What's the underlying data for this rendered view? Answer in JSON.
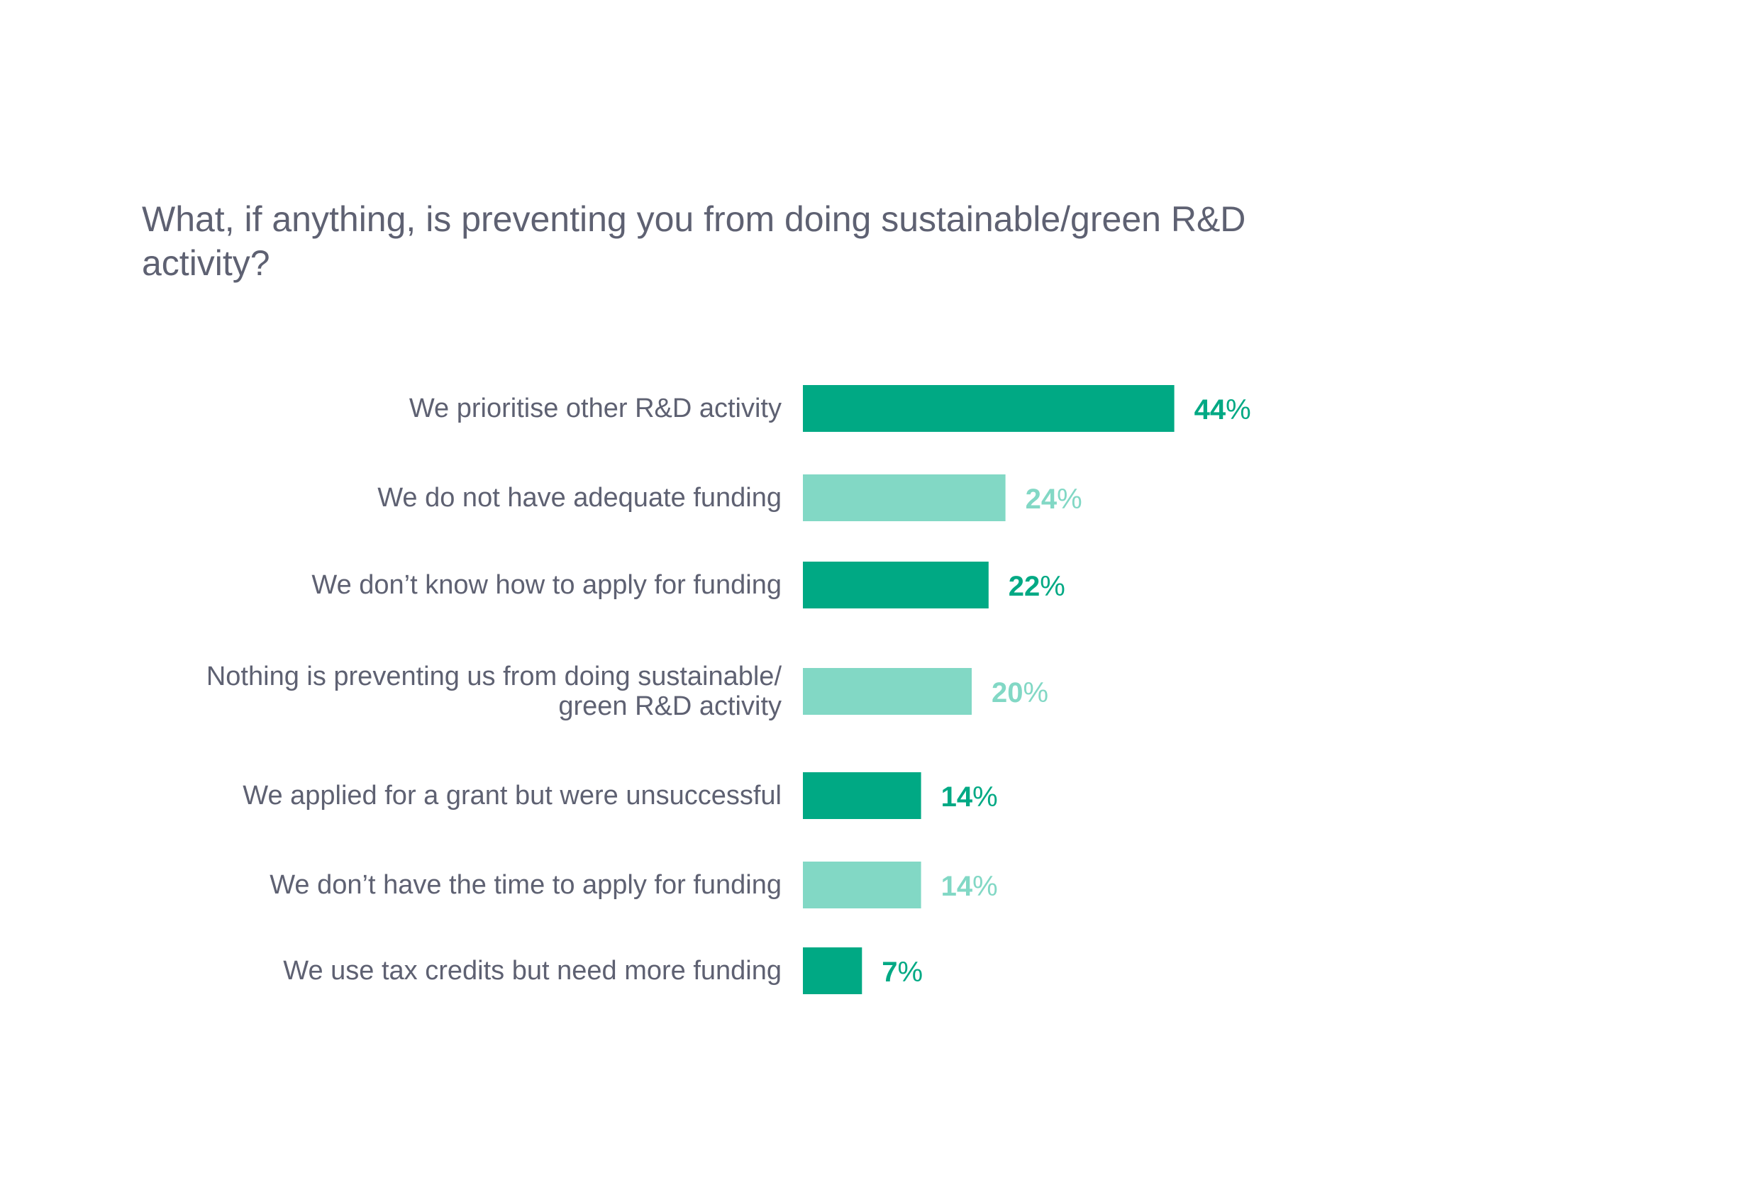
{
  "chart_data": {
    "type": "bar",
    "orientation": "horizontal",
    "title": "What, if anything, is preventing you from doing sustainable/green R&D activity?",
    "categories": [
      [
        "We prioritise other R&D activity"
      ],
      [
        "We do not have adequate funding"
      ],
      [
        "We don’t know how to apply for funding"
      ],
      [
        "Nothing is preventing us from doing sustainable/",
        "green R&D activity"
      ],
      [
        "We applied for a grant but were unsuccessful"
      ],
      [
        "We don’t have the time to apply for funding"
      ],
      [
        "We use tax credits but need more funding"
      ]
    ],
    "values": [
      44,
      24,
      22,
      20,
      14,
      14,
      7
    ],
    "value_suffix": "%",
    "xlim": [
      0,
      100
    ],
    "grid": false,
    "legend": "none",
    "colors": {
      "dark": "#00a984",
      "light": "#82d8c5",
      "text": "#5e6172"
    },
    "bar_colors": [
      "dark",
      "light",
      "dark",
      "light",
      "dark",
      "light",
      "dark"
    ]
  }
}
